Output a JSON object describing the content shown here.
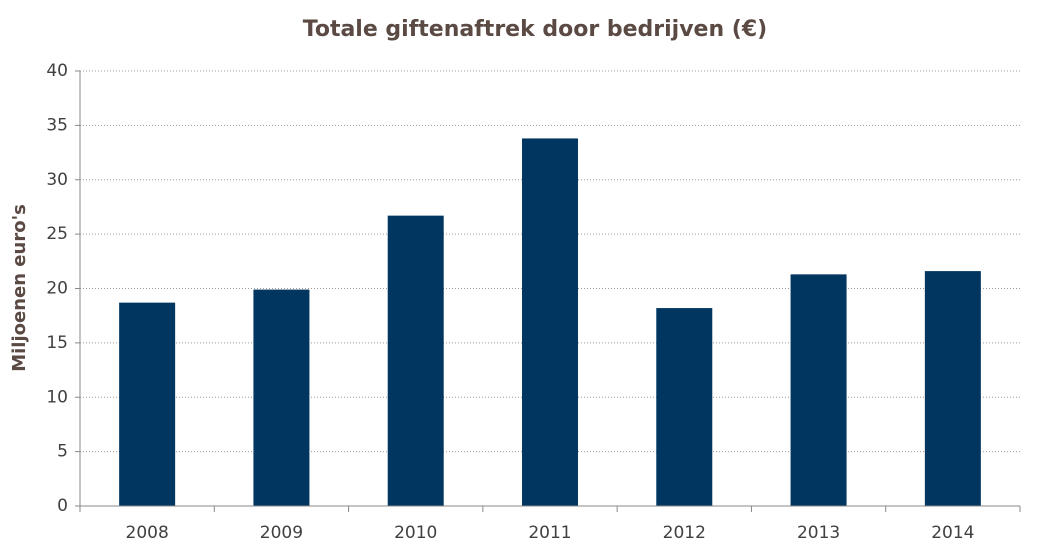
{
  "chart_data": {
    "type": "bar",
    "title": "Totale giftenaftrek door bedrijven (€)",
    "y_label": "Miljoenen euro's",
    "categories": [
      "2008",
      "2009",
      "2010",
      "2011",
      "2012",
      "2013",
      "2014"
    ],
    "values": [
      18.7,
      19.9,
      26.7,
      33.8,
      18.2,
      21.3,
      21.6
    ],
    "color": "#003660",
    "ylim": [
      0,
      40
    ],
    "yticks": [
      0,
      5,
      10,
      15,
      20,
      25,
      30,
      35,
      40
    ],
    "grid": true
  }
}
